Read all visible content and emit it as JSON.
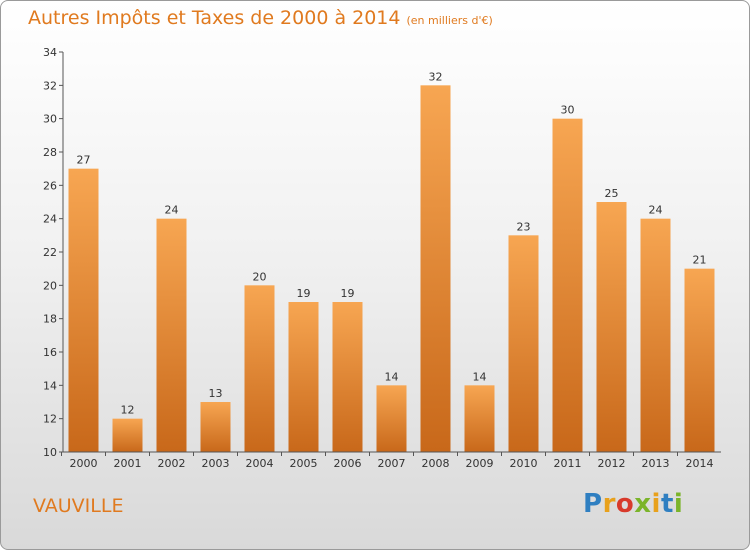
{
  "header": {
    "title": "Autres Impôts et Taxes de 2000 à 2014",
    "unit": "(en milliers d'€)"
  },
  "footer": {
    "location": "VAUVILLE",
    "logo_text": "Proxiti"
  },
  "colors": {
    "accent": "#e07a1f",
    "bar_light": "#f7a652",
    "bar_dark": "#c8681a"
  },
  "chart_data": {
    "type": "bar",
    "categories": [
      "2000",
      "2001",
      "2002",
      "2003",
      "2004",
      "2005",
      "2006",
      "2007",
      "2008",
      "2009",
      "2010",
      "2011",
      "2012",
      "2013",
      "2014"
    ],
    "values": [
      27,
      12,
      24,
      13,
      20,
      19,
      19,
      14,
      32,
      14,
      23,
      30,
      25,
      24,
      21
    ],
    "title": "Autres Impôts et Taxes de 2000 à 2014",
    "ylim": [
      10,
      34
    ],
    "yticks": [
      10,
      12,
      14,
      16,
      18,
      20,
      22,
      24,
      26,
      28,
      30,
      32,
      34
    ],
    "grid": false,
    "legend": "none"
  }
}
